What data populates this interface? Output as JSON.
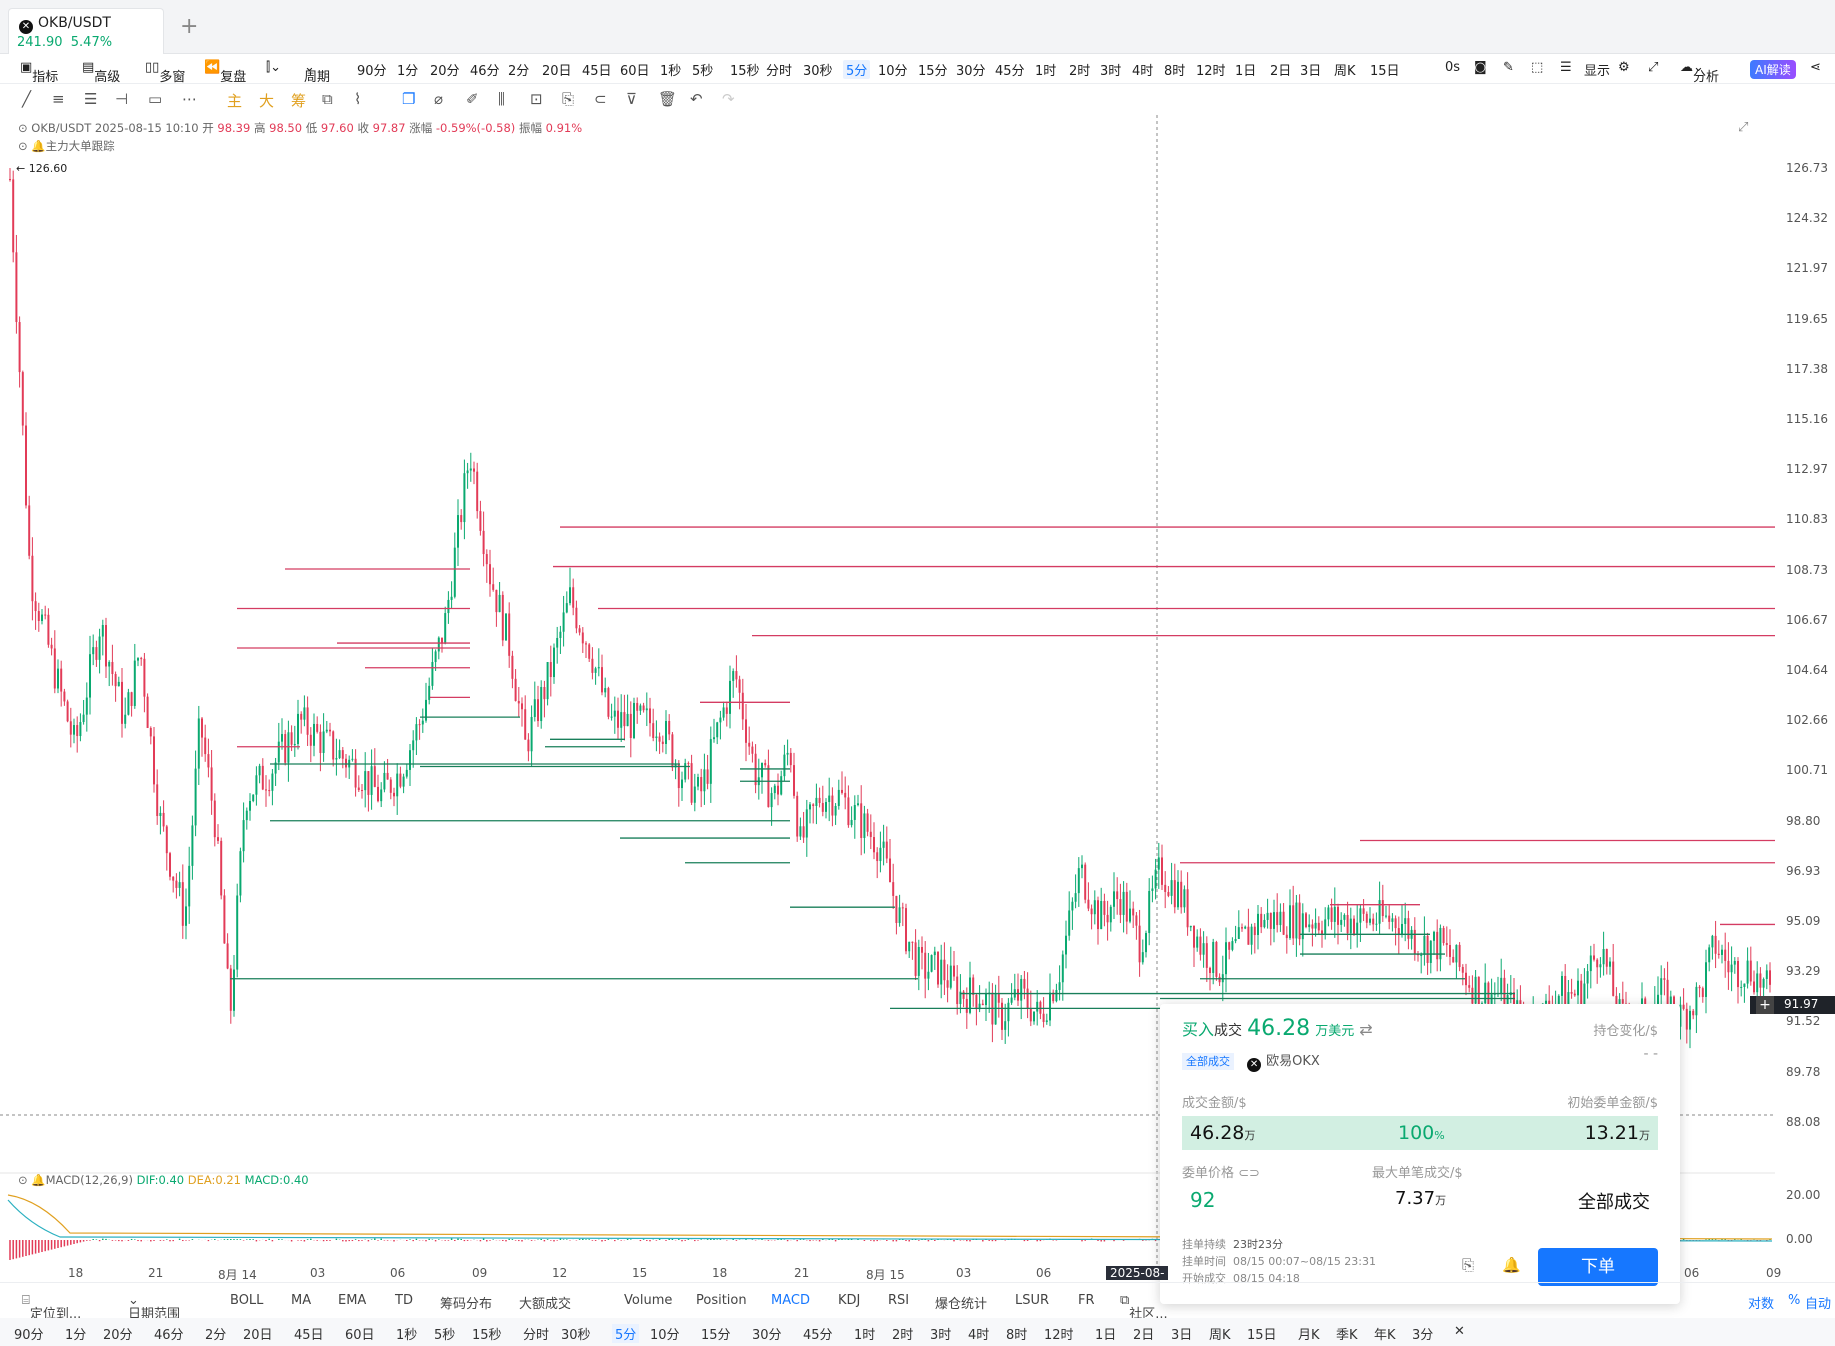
{
  "tab": {
    "symbol": "OKB/USDT",
    "price": "241.90",
    "change": "5.47%"
  },
  "toolbar": {
    "indicators": "指标",
    "advanced": "高级",
    "multi_window": "多窗",
    "replay": "复盘",
    "period": "周期",
    "periods": [
      "90分",
      "1分",
      "20分",
      "46分",
      "2分",
      "20日",
      "45日",
      "60日",
      "1秒",
      "5秒",
      "15秒",
      "分时",
      "30秒",
      "5分",
      "10分",
      "15分",
      "30分",
      "45分",
      "1时",
      "2时",
      "3时",
      "4时",
      "8时",
      "12时",
      "1日",
      "2日",
      "3日",
      "周K",
      "15日"
    ],
    "active_period": "5分",
    "countdown": "0s",
    "display": "显示",
    "analysis": "分析",
    "ai": "AI解读"
  },
  "drawing_tools": {
    "main": "主",
    "big": "大",
    "chips": "筹"
  },
  "info": {
    "symbol": "OKB/USDT",
    "datetime": "2025-08-15 10:10",
    "open_label": "开",
    "open": "98.39",
    "high_label": "高",
    "high": "98.50",
    "low_label": "低",
    "low": "97.60",
    "close_label": "收",
    "close": "97.87",
    "change_label": "涨幅",
    "change": "-0.59%(-0.58)",
    "amp_label": "振幅",
    "amp": "0.91%",
    "tracker": "主力大单跟踪",
    "max_label": "126.60"
  },
  "y_axis": [
    "126.73",
    "124.32",
    "121.97",
    "119.65",
    "117.38",
    "115.16",
    "112.97",
    "110.83",
    "108.73",
    "106.67",
    "104.64",
    "102.66",
    "100.71",
    "98.80",
    "96.93",
    "95.09",
    "93.29",
    "91.52",
    "89.78",
    "88.08"
  ],
  "current_price": "91.97",
  "macd": {
    "label": "MACD(12,26,9)",
    "dif": "DIF:0.40",
    "dea": "DEA:0.21",
    "macd": "MACD:0.40",
    "axis": [
      "20.00",
      "0.00"
    ]
  },
  "x_axis": [
    "18",
    "21",
    "8月 14",
    "03",
    "06",
    "09",
    "12",
    "15",
    "18",
    "21",
    "8月 15",
    "03",
    "06",
    "2025-08-",
    "06",
    "09"
  ],
  "panel": {
    "side": "买入",
    "deal": "成交",
    "amount": "46.28",
    "unit": "万美元",
    "pos_change_label": "持仓变化/$",
    "pos_change": "- -",
    "all_deals": "全部成交",
    "exchange": "欧易OKX",
    "deal_amount_label": "成交金额/$",
    "init_amount_label": "初始委单金额/$",
    "deal_amount": "46.28",
    "wan": "万",
    "pct": "100",
    "pct_unit": "%",
    "init_amount": "13.21",
    "order_price_label": "委单价格",
    "max_single_label": "最大单笔成交/$",
    "order_price": "92",
    "max_single": "7.37",
    "status": "全部成交",
    "duration_label": "挂单持续",
    "duration": "23时23分",
    "time_label": "挂单时间",
    "time": "08/15 00:07~08/15 23:31",
    "start_label": "开始成交",
    "start": "08/15 04:18",
    "order_button": "下单"
  },
  "bottom_tools": [
    "定位到...",
    "日期范围",
    "BOLL",
    "MA",
    "EMA",
    "TD",
    "筹码分布",
    "大额成交",
    "Volume",
    "Position",
    "MACD",
    "KDJ",
    "RSI",
    "爆仓统计",
    "LSUR",
    "FR",
    "社区..."
  ],
  "bottom_right": [
    "对数",
    "%",
    "自动"
  ],
  "period_bar": [
    "90分",
    "1分",
    "20分",
    "46分",
    "2分",
    "20日",
    "45日",
    "60日",
    "1秒",
    "5秒",
    "15秒",
    "分时",
    "30秒",
    "5分",
    "10分",
    "15分",
    "30分",
    "45分",
    "1时",
    "2时",
    "3时",
    "4时",
    "8时",
    "12时",
    "1日",
    "2日",
    "3日",
    "周K",
    "15日",
    "月K",
    "季K",
    "年K",
    "3分"
  ],
  "colors": {
    "up": "#0aa970",
    "down": "#e23b57",
    "accent": "#1677ff"
  }
}
